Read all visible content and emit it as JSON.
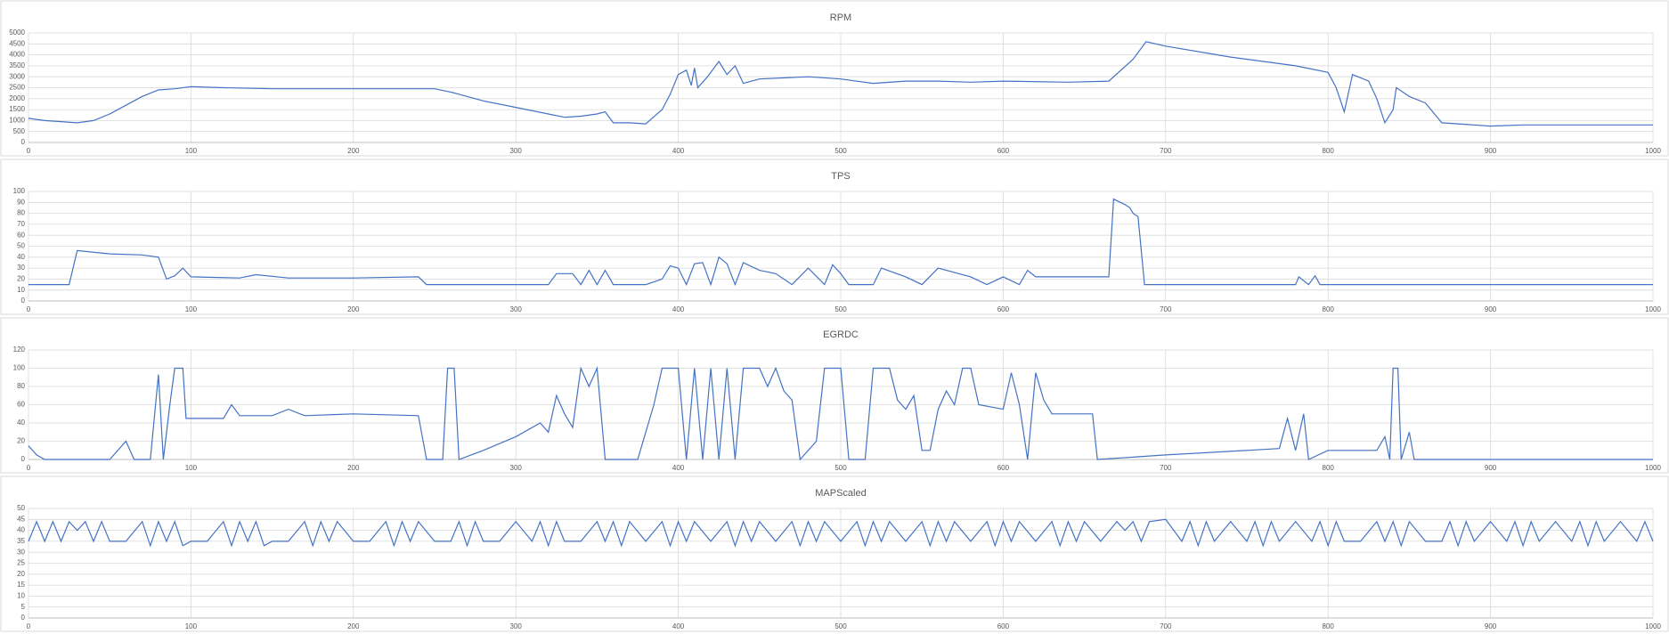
{
  "chart_data": [
    {
      "type": "line",
      "title": "RPM",
      "color": "#4472c4",
      "grid": true,
      "xlim": [
        0,
        1000
      ],
      "xticks": [
        0,
        100,
        200,
        300,
        400,
        500,
        600,
        700,
        800,
        900,
        1000
      ],
      "ylim": [
        0,
        5000
      ],
      "yticks": [
        0,
        500,
        1000,
        1500,
        2000,
        2500,
        3000,
        3500,
        4000,
        4500,
        5000
      ],
      "x": [
        0,
        10,
        20,
        30,
        40,
        50,
        60,
        70,
        80,
        90,
        100,
        120,
        150,
        200,
        250,
        260,
        280,
        300,
        320,
        330,
        340,
        350,
        355,
        360,
        370,
        380,
        390,
        395,
        400,
        405,
        408,
        410,
        412,
        418,
        425,
        430,
        435,
        440,
        450,
        480,
        500,
        520,
        540,
        560,
        580,
        600,
        640,
        665,
        680,
        688,
        700,
        740,
        780,
        800,
        805,
        810,
        815,
        825,
        830,
        835,
        840,
        842,
        850,
        860,
        870,
        900,
        920,
        960,
        1000
      ],
      "values": [
        1100,
        1000,
        950,
        900,
        1000,
        1300,
        1700,
        2100,
        2400,
        2450,
        2550,
        2500,
        2450,
        2450,
        2450,
        2300,
        1900,
        1600,
        1300,
        1150,
        1200,
        1300,
        1400,
        900,
        900,
        850,
        1500,
        2200,
        3100,
        3300,
        2600,
        3400,
        2500,
        3000,
        3700,
        3100,
        3500,
        2700,
        2900,
        3000,
        2900,
        2700,
        2800,
        2800,
        2750,
        2800,
        2750,
        2800,
        3800,
        4600,
        4400,
        3900,
        3500,
        3200,
        2500,
        1400,
        3100,
        2800,
        2000,
        900,
        1500,
        2500,
        2100,
        1800,
        900,
        750,
        800,
        800,
        800
      ]
    },
    {
      "type": "line",
      "title": "TPS",
      "color": "#4472c4",
      "grid": true,
      "xlim": [
        0,
        1000
      ],
      "xticks": [
        0,
        100,
        200,
        300,
        400,
        500,
        600,
        700,
        800,
        900,
        1000
      ],
      "ylim": [
        0,
        100
      ],
      "yticks": [
        0,
        10,
        20,
        30,
        40,
        50,
        60,
        70,
        80,
        90,
        100
      ],
      "x": [
        0,
        25,
        30,
        50,
        70,
        80,
        85,
        90,
        95,
        100,
        130,
        140,
        160,
        200,
        240,
        245,
        300,
        320,
        325,
        335,
        340,
        345,
        350,
        355,
        360,
        380,
        390,
        395,
        400,
        405,
        410,
        415,
        420,
        425,
        430,
        435,
        440,
        450,
        460,
        470,
        480,
        490,
        495,
        500,
        505,
        520,
        525,
        540,
        550,
        560,
        580,
        590,
        600,
        610,
        615,
        620,
        665,
        668,
        675,
        678,
        680,
        683,
        687,
        700,
        780,
        782,
        788,
        792,
        795,
        1000
      ],
      "values": [
        15,
        15,
        46,
        43,
        42,
        40,
        20,
        23,
        30,
        22,
        21,
        24,
        21,
        21,
        22,
        15,
        15,
        15,
        25,
        25,
        15,
        28,
        15,
        28,
        15,
        15,
        20,
        32,
        30,
        15,
        34,
        35,
        15,
        40,
        34,
        15,
        35,
        28,
        25,
        15,
        30,
        15,
        33,
        25,
        15,
        15,
        30,
        22,
        15,
        30,
        22,
        15,
        22,
        15,
        28,
        22,
        22,
        93,
        88,
        85,
        80,
        77,
        15,
        15,
        15,
        22,
        15,
        23,
        15,
        15
      ]
    },
    {
      "type": "line",
      "title": "EGRDC",
      "color": "#4472c4",
      "grid": true,
      "xlim": [
        0,
        1000
      ],
      "xticks": [
        0,
        100,
        200,
        300,
        400,
        500,
        600,
        700,
        800,
        900,
        1000
      ],
      "ylim": [
        0,
        120
      ],
      "yticks": [
        0,
        20,
        40,
        60,
        80,
        100,
        120
      ],
      "x": [
        0,
        5,
        10,
        50,
        60,
        65,
        75,
        80,
        83,
        87,
        90,
        95,
        97,
        110,
        120,
        125,
        130,
        150,
        160,
        170,
        200,
        240,
        245,
        255,
        258,
        262,
        265,
        280,
        300,
        315,
        320,
        325,
        330,
        335,
        340,
        345,
        350,
        355,
        375,
        385,
        390,
        400,
        405,
        410,
        415,
        420,
        425,
        430,
        435,
        440,
        450,
        455,
        460,
        465,
        470,
        475,
        485,
        490,
        500,
        505,
        515,
        520,
        530,
        535,
        540,
        545,
        550,
        555,
        560,
        565,
        570,
        575,
        580,
        585,
        600,
        605,
        610,
        615,
        620,
        625,
        630,
        655,
        658,
        700,
        750,
        770,
        775,
        780,
        785,
        788,
        800,
        830,
        835,
        838,
        840,
        843,
        845,
        850,
        853,
        1000
      ],
      "values": [
        15,
        5,
        0,
        0,
        20,
        0,
        0,
        93,
        0,
        60,
        100,
        100,
        45,
        45,
        45,
        60,
        48,
        48,
        55,
        48,
        50,
        48,
        0,
        0,
        100,
        100,
        0,
        10,
        25,
        40,
        30,
        70,
        50,
        35,
        100,
        80,
        100,
        0,
        0,
        60,
        100,
        100,
        0,
        100,
        0,
        100,
        0,
        100,
        0,
        100,
        100,
        80,
        100,
        75,
        65,
        0,
        20,
        100,
        100,
        0,
        0,
        100,
        100,
        65,
        55,
        70,
        10,
        10,
        55,
        75,
        60,
        100,
        100,
        60,
        55,
        95,
        60,
        0,
        95,
        65,
        50,
        50,
        0,
        5,
        10,
        12,
        45,
        10,
        50,
        0,
        10,
        10,
        25,
        0,
        100,
        100,
        0,
        30,
        0,
        0
      ]
    },
    {
      "type": "line",
      "title": "MAPScaled",
      "color": "#4472c4",
      "grid": true,
      "xlim": [
        0,
        1000
      ],
      "xticks": [
        0,
        100,
        200,
        300,
        400,
        500,
        600,
        700,
        800,
        900,
        1000
      ],
      "ylim": [
        0,
        50
      ],
      "yticks": [
        0,
        5,
        10,
        15,
        20,
        25,
        30,
        35,
        40,
        45,
        50
      ],
      "x": [
        0,
        5,
        10,
        15,
        20,
        25,
        30,
        35,
        40,
        45,
        50,
        60,
        70,
        75,
        80,
        85,
        90,
        95,
        100,
        110,
        120,
        125,
        130,
        135,
        140,
        145,
        150,
        160,
        170,
        175,
        180,
        185,
        190,
        200,
        210,
        220,
        225,
        230,
        235,
        240,
        250,
        260,
        265,
        270,
        275,
        280,
        290,
        300,
        310,
        315,
        320,
        325,
        330,
        340,
        350,
        355,
        360,
        365,
        370,
        380,
        390,
        395,
        400,
        405,
        410,
        420,
        430,
        435,
        440,
        445,
        450,
        460,
        470,
        475,
        480,
        485,
        490,
        500,
        510,
        515,
        520,
        525,
        530,
        540,
        550,
        555,
        560,
        565,
        570,
        580,
        590,
        595,
        600,
        605,
        610,
        620,
        630,
        635,
        640,
        645,
        650,
        660,
        670,
        675,
        680,
        685,
        690,
        700,
        710,
        715,
        720,
        725,
        730,
        740,
        750,
        755,
        760,
        765,
        770,
        780,
        790,
        795,
        800,
        805,
        810,
        820,
        830,
        835,
        840,
        845,
        850,
        860,
        870,
        875,
        880,
        885,
        890,
        900,
        910,
        915,
        920,
        925,
        930,
        940,
        950,
        955,
        960,
        965,
        970,
        980,
        990,
        995,
        1000
      ],
      "values": [
        35,
        44,
        35,
        44,
        35,
        44,
        40,
        44,
        35,
        44,
        35,
        35,
        44,
        33,
        44,
        35,
        44,
        33,
        35,
        35,
        44,
        33,
        44,
        35,
        44,
        33,
        35,
        35,
        44,
        33,
        44,
        35,
        44,
        35,
        35,
        44,
        33,
        44,
        35,
        44,
        35,
        35,
        44,
        33,
        44,
        35,
        35,
        44,
        35,
        44,
        33,
        44,
        35,
        35,
        44,
        35,
        44,
        33,
        44,
        35,
        44,
        33,
        44,
        35,
        44,
        35,
        44,
        33,
        44,
        35,
        44,
        35,
        44,
        33,
        44,
        35,
        44,
        35,
        44,
        33,
        44,
        35,
        44,
        35,
        44,
        33,
        44,
        35,
        44,
        35,
        44,
        33,
        44,
        35,
        44,
        35,
        44,
        33,
        44,
        35,
        44,
        35,
        44,
        40,
        44,
        35,
        44,
        45,
        35,
        44,
        33,
        44,
        35,
        44,
        35,
        44,
        33,
        44,
        35,
        44,
        35,
        44,
        33,
        44,
        35,
        35,
        44,
        35,
        44,
        33,
        44,
        35,
        35,
        44,
        33,
        44,
        35,
        44,
        35,
        44,
        33,
        44,
        35,
        44,
        35,
        44,
        33,
        44,
        35,
        44,
        35,
        44,
        35
      ]
    }
  ]
}
